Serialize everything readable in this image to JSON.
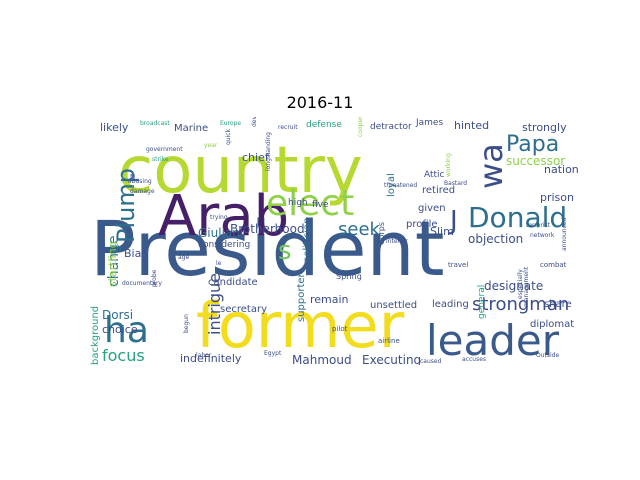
{
  "title": "2016-11",
  "words": [
    {
      "text": "President",
      "color": "#3b5a8c"
    },
    {
      "text": "country",
      "color": "#b5d930"
    },
    {
      "text": "former",
      "color": "#f2dc1c"
    },
    {
      "text": "Arab",
      "color": "#452068"
    },
    {
      "text": "leader",
      "color": "#3b5a8c"
    },
    {
      "text": "elect",
      "color": "#8fd14a"
    },
    {
      "text": "ha",
      "color": "#2c6f8f"
    },
    {
      "text": "Donald",
      "color": "#2c6f8f"
    },
    {
      "text": "wa",
      "color": "#3c4e8a"
    },
    {
      "text": "Plump",
      "color": "#2c6f8f"
    },
    {
      "text": "Papa",
      "color": "#2d6e8e"
    },
    {
      "text": "s",
      "color": "#76c55b"
    },
    {
      "text": "J",
      "color": "#3c4e8a"
    },
    {
      "text": "seek",
      "color": "#2c6f8f"
    },
    {
      "text": "strongman",
      "color": "#3c4e8a"
    },
    {
      "text": "intrigue",
      "color": "#3c4e8a"
    },
    {
      "text": "focus",
      "color": "#26a284"
    },
    {
      "text": "change",
      "color": "#2a788e"
    },
    {
      "text": "successor",
      "color": "#8fd14a"
    },
    {
      "text": "designate",
      "color": "#3c4e8a"
    },
    {
      "text": "objection",
      "color": "#3c4e8a"
    },
    {
      "text": "Dorsi",
      "color": "#2c6f8f"
    },
    {
      "text": "Giuliani",
      "color": "#2c6f8f"
    },
    {
      "text": "Brotherhood",
      "color": "#3c4e8a"
    },
    {
      "text": "Mahmoud",
      "color": "#3c4e8a"
    },
    {
      "text": "Executing",
      "color": "#3c4e8a"
    },
    {
      "text": "indefinitely",
      "color": "#3c4e8a"
    },
    {
      "text": "choice",
      "color": "#3c4e8a"
    },
    {
      "text": "Bias",
      "color": "#3c4e8a"
    },
    {
      "text": "likely",
      "color": "#3c4e8a"
    },
    {
      "text": "Marine",
      "color": "#3c4e8a"
    },
    {
      "text": "chief",
      "color": "#3c4e8a"
    },
    {
      "text": "hinted",
      "color": "#3c4e8a"
    },
    {
      "text": "strongly",
      "color": "#3c4e8a"
    },
    {
      "text": "nation",
      "color": "#3c4e8a"
    },
    {
      "text": "prison",
      "color": "#3c4e8a"
    },
    {
      "text": "Slim",
      "color": "#3c4e8a"
    },
    {
      "text": "given",
      "color": "#3c4e8a"
    },
    {
      "text": "retired",
      "color": "#3c4e8a"
    },
    {
      "text": "profile",
      "color": "#3c4e8a"
    },
    {
      "text": "loyal",
      "color": "#2c6f8f"
    },
    {
      "text": "remain",
      "color": "#3c4e8a"
    },
    {
      "text": "unsettled",
      "color": "#3c4e8a"
    },
    {
      "text": "leading",
      "color": "#3c4e8a"
    },
    {
      "text": "diplomat",
      "color": "#3c4e8a"
    },
    {
      "text": "share",
      "color": "#3c4e8a"
    },
    {
      "text": "secretary",
      "color": "#3c4e8a"
    },
    {
      "text": "supporter",
      "color": "#2c6f8f"
    },
    {
      "text": "politician",
      "color": "#2c6f8f"
    },
    {
      "text": "candidate",
      "color": "#3c4e8a"
    },
    {
      "text": "considering",
      "color": "#3c4e8a"
    },
    {
      "text": "startling",
      "color": "#8fd14a"
    },
    {
      "text": "background",
      "color": "#26a284"
    },
    {
      "text": "high",
      "color": "#3c4e8a"
    },
    {
      "text": "five",
      "color": "#3c4e8a"
    },
    {
      "text": "defense",
      "color": "#26a284"
    },
    {
      "text": "detractor",
      "color": "#3c4e8a"
    },
    {
      "text": "James",
      "color": "#3c4e8a"
    },
    {
      "text": "Attic",
      "color": "#3c4e8a"
    },
    {
      "text": "general",
      "color": "#26a284"
    },
    {
      "text": "Spring",
      "color": "#3c4e8a"
    },
    {
      "text": "Corps",
      "color": "#3c4e8a"
    },
    {
      "text": "pilot",
      "color": "#3c4e8a"
    },
    {
      "text": "airline",
      "color": "#3c4e8a"
    },
    {
      "text": "travel",
      "color": "#3c4e8a"
    },
    {
      "text": "combat",
      "color": "#3c4e8a"
    },
    {
      "text": "Egypt",
      "color": "#3c4e8a"
    },
    {
      "text": "labor",
      "color": "#3c4e8a"
    },
    {
      "text": "accuses",
      "color": "#3c4e8a"
    },
    {
      "text": "caused",
      "color": "#3c4e8a"
    },
    {
      "text": "Bastard",
      "color": "#3c4e8a"
    },
    {
      "text": "Europe",
      "color": "#26a284"
    },
    {
      "text": "broadcast",
      "color": "#26a284"
    },
    {
      "text": "recruit",
      "color": "#3c4e8a"
    },
    {
      "text": "government",
      "color": "#3c4e8a"
    },
    {
      "text": "strike",
      "color": "#26a284"
    },
    {
      "text": "abusing",
      "color": "#3c4e8a"
    },
    {
      "text": "damage",
      "color": "#3c4e8a"
    },
    {
      "text": "documentary",
      "color": "#3c4e8a"
    },
    {
      "text": "trying",
      "color": "#3c4e8a"
    },
    {
      "text": "threatened",
      "color": "#3c4e8a"
    },
    {
      "text": "terrorist",
      "color": "#3c4e8a"
    },
    {
      "text": "network",
      "color": "#3c4e8a"
    },
    {
      "text": "interior",
      "color": "#3c4e8a"
    },
    {
      "text": "N",
      "color": "#3c4e8a"
    },
    {
      "text": "year",
      "color": "#8fd14a"
    },
    {
      "text": "quick",
      "color": "#3c4e8a"
    },
    {
      "text": "developed",
      "color": "#3c4e8a"
    },
    {
      "text": "longstanding",
      "color": "#3c4e8a"
    },
    {
      "text": "cooperation",
      "color": "#8fd14a"
    },
    {
      "text": "working",
      "color": "#8fd14a"
    },
    {
      "text": "especially",
      "color": "#3c4e8a"
    },
    {
      "text": "management",
      "color": "#3c4e8a"
    },
    {
      "text": "announced",
      "color": "#3c4e8a"
    },
    {
      "text": "Outside",
      "color": "#3c4e8a"
    },
    {
      "text": "probe",
      "color": "#3c4e8a"
    },
    {
      "text": "begun",
      "color": "#3c4e8a"
    },
    {
      "text": "age",
      "color": "#3c4e8a"
    },
    {
      "text": "le",
      "color": "#3c4e8a"
    }
  ]
}
